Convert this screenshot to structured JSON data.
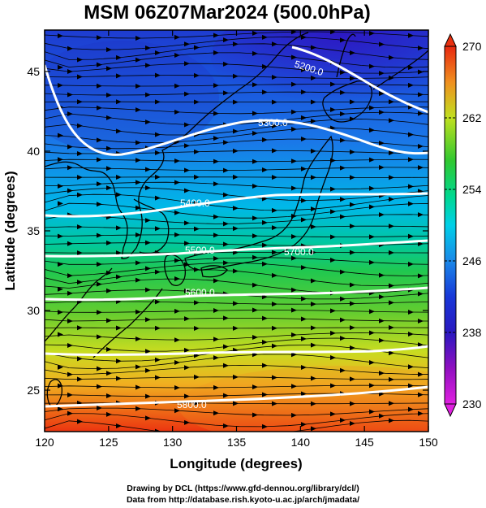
{
  "title": "MSM 06Z07Mar2024 (500.0hPa)",
  "x_axis": {
    "label": "Longitude (degrees)",
    "range": [
      120,
      150
    ],
    "ticks": [
      {
        "value": 120,
        "label": "120"
      },
      {
        "value": 125,
        "label": "125"
      },
      {
        "value": 130,
        "label": "130"
      },
      {
        "value": 135,
        "label": "135"
      },
      {
        "value": 140,
        "label": "140"
      },
      {
        "value": 145,
        "label": "145"
      },
      {
        "value": 150,
        "label": "150"
      }
    ]
  },
  "y_axis": {
    "label": "Latitude  (degrees)",
    "range": [
      22.4,
      47.6
    ],
    "ticks": [
      {
        "value": 25,
        "label": "25"
      },
      {
        "value": 30,
        "label": "30"
      },
      {
        "value": 35,
        "label": "35"
      },
      {
        "value": 40,
        "label": "40"
      },
      {
        "value": 45,
        "label": "45"
      }
    ]
  },
  "colorbar": {
    "min": 230,
    "max": 270,
    "ticks": [
      {
        "value": 270,
        "label": "270"
      },
      {
        "value": 262,
        "label": "262"
      },
      {
        "value": 254,
        "label": "254"
      },
      {
        "value": 246,
        "label": "246"
      },
      {
        "value": 238,
        "label": "238"
      },
      {
        "value": 230,
        "label": "230"
      }
    ],
    "colors": [
      "#e000e0",
      "#6a1ab8",
      "#1a18c8",
      "#1a6ee0",
      "#00c8f0",
      "#00d890",
      "#30c830",
      "#c8e020",
      "#f0a020",
      "#e83010"
    ]
  },
  "contours": [
    {
      "label": "5200.0"
    },
    {
      "label": "5300.0"
    },
    {
      "label": "5400.0"
    },
    {
      "label": "5500.0"
    },
    {
      "label": "5600.0"
    },
    {
      "label": "5700.0"
    },
    {
      "label": "5800.0"
    }
  ],
  "credits": {
    "line1": "Drawing by DCL (https://www.gfd-dennou.org/library/dcl/)",
    "line2": "Data from http://database.rish.kyoto-u.ac.jp/arch/jmadata/"
  }
}
